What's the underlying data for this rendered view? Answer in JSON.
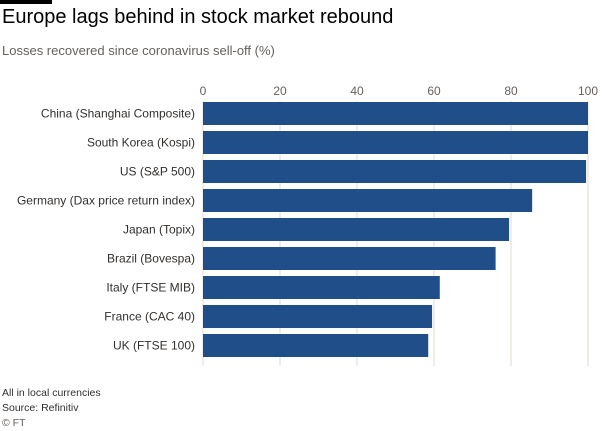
{
  "chart_data": {
    "type": "bar",
    "orientation": "horizontal",
    "title": "Europe lags behind in stock market rebound",
    "subtitle": "Losses recovered since coronavirus sell-off (%)",
    "categories": [
      "China (Shanghai Composite)",
      "South Korea (Kospi)",
      "US (S&P 500)",
      "Germany (Dax price return index)",
      "Japan (Topix)",
      "Brazil (Bovespa)",
      "Italy (FTSE MIB)",
      "France (CAC 40)",
      "UK (FTSE 100)"
    ],
    "values": [
      100,
      100,
      99.5,
      85.5,
      79.5,
      76,
      61.5,
      59.5,
      58.5
    ],
    "xlim": [
      0,
      100
    ],
    "xticks": [
      0,
      20,
      40,
      60,
      80,
      100
    ],
    "tick_position": "top",
    "grid": true,
    "bar_color": "#1f4e89"
  },
  "footer": {
    "note": "All in local currencies",
    "source": "Source: Refinitiv",
    "copyright": "© FT"
  }
}
